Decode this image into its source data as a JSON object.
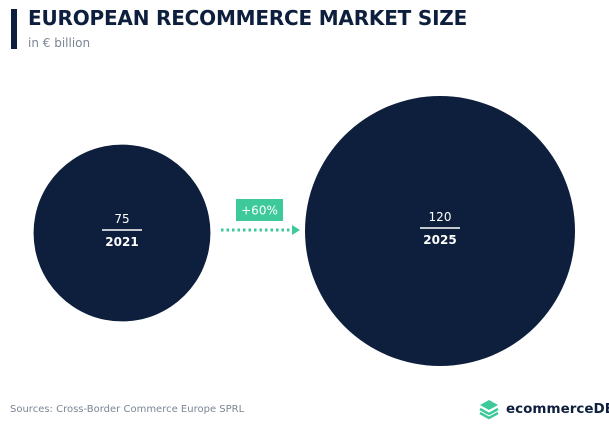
{
  "chart_data": {
    "type": "bubble",
    "title": "EUROPEAN RECOMMERCE MARKET SIZE",
    "subtitle": "in € billion",
    "categories": [
      "2021",
      "2025"
    ],
    "values": [
      75,
      120
    ],
    "value_labels": [
      "75",
      "120"
    ],
    "annotation": "+60%",
    "source": "Sources: Cross-Border Commerce Europe SPRL"
  },
  "brand": "ecommerceDB",
  "colors": {
    "bubble": "#0e1f3d",
    "accent": "#3ec99a",
    "text": "#0e1f3d",
    "muted": "#7c8594"
  }
}
